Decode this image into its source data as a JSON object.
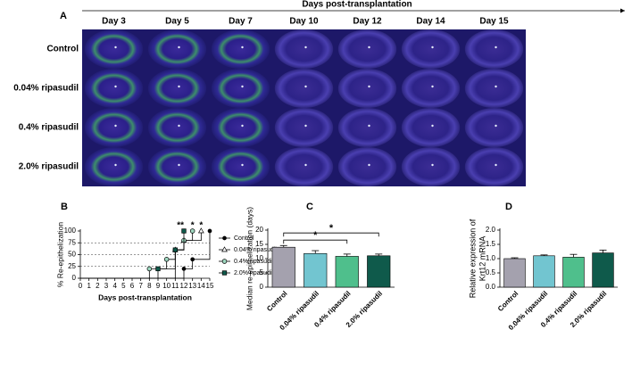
{
  "panel_a": {
    "label": "A",
    "title": "Days post-transplantation",
    "columns": [
      "Day 3",
      "Day 5",
      "Day 7",
      "Day 10",
      "Day 12",
      "Day 14",
      "Day 15"
    ],
    "rows": [
      "Control",
      "0.04% ripasudil",
      "0.4% ripasudil",
      "2.0% ripasudil"
    ]
  },
  "chart_data": [
    {
      "type": "step",
      "label": "B",
      "xlabel": "Days post-transplantation",
      "ylabel": "% Re-epithelization",
      "xlim": [
        0,
        15
      ],
      "ylim": [
        0,
        100
      ],
      "xticks": [
        0,
        1,
        2,
        3,
        4,
        5,
        6,
        7,
        8,
        9,
        10,
        11,
        12,
        13,
        14,
        15
      ],
      "yticks": [
        0,
        25,
        50,
        75,
        100
      ],
      "grid_lines": [
        25,
        50,
        75
      ],
      "series": [
        {
          "name": "Control",
          "color": "#000000",
          "marker": "dot",
          "x": [
            0,
            12,
            13,
            15
          ],
          "values": [
            0,
            20,
            40,
            100
          ]
        },
        {
          "name": "0.04% ripasudil",
          "color": "#000000",
          "marker": "triangle",
          "x": [
            0,
            11,
            12,
            14
          ],
          "values": [
            0,
            60,
            80,
            100
          ]
        },
        {
          "name": "0.4% ripasudil",
          "color": "#9fd8c0",
          "marker": "circle",
          "x": [
            0,
            8,
            10,
            11,
            12,
            13
          ],
          "values": [
            0,
            20,
            40,
            60,
            80,
            100
          ]
        },
        {
          "name": "2.0% ripasudil",
          "color": "#0f5a4b",
          "marker": "square",
          "x": [
            0,
            9,
            11,
            12
          ],
          "values": [
            0,
            20,
            60,
            100
          ]
        }
      ],
      "annotations": [
        {
          "text": "**",
          "x": 11.6
        },
        {
          "text": "*",
          "x": 13
        },
        {
          "text": "*",
          "x": 14
        }
      ]
    },
    {
      "type": "bar",
      "label": "C",
      "ylabel": "Median re-epithelization (days)",
      "categories": [
        "Control",
        "0.04% ripasudil",
        "0.4% ripasudil",
        "2.0% ripasudil"
      ],
      "values": [
        14,
        11.8,
        10.8,
        11
      ],
      "errors": [
        0.6,
        1,
        0.8,
        0.6
      ],
      "colors": [
        "#a4a1ae",
        "#72c5d0",
        "#4fbf8c",
        "#0f5a4b"
      ],
      "ylim": [
        0,
        20
      ],
      "yticks": [
        0,
        5,
        10,
        15,
        20
      ],
      "brackets": [
        {
          "text": "*",
          "between": [
            0,
            2
          ],
          "y": 16.5
        },
        {
          "text": "*",
          "between": [
            0,
            3
          ],
          "y": 19
        }
      ]
    },
    {
      "type": "bar",
      "label": "D",
      "ylabel": [
        "Relative expression of",
        "Krt12 mRNA"
      ],
      "categories": [
        "Control",
        "0.04% ripasudil",
        "0.4% ripasudil",
        "2.0% ripasudil"
      ],
      "values": [
        1.0,
        1.1,
        1.05,
        1.2
      ],
      "errors": [
        0.03,
        0.03,
        0.1,
        0.1
      ],
      "colors": [
        "#a4a1ae",
        "#72c5d0",
        "#4fbf8c",
        "#0f5a4b"
      ],
      "ylim": [
        0,
        2
      ],
      "yticks": [
        {
          "value": 0,
          "label": "0.0"
        },
        {
          "value": 0.5,
          "label": "0.5"
        },
        {
          "value": 1,
          "label": "1.0"
        },
        {
          "value": 1.5,
          "label": "1.5"
        },
        {
          "value": 2,
          "label": "2.0"
        }
      ],
      "brackets": []
    }
  ]
}
